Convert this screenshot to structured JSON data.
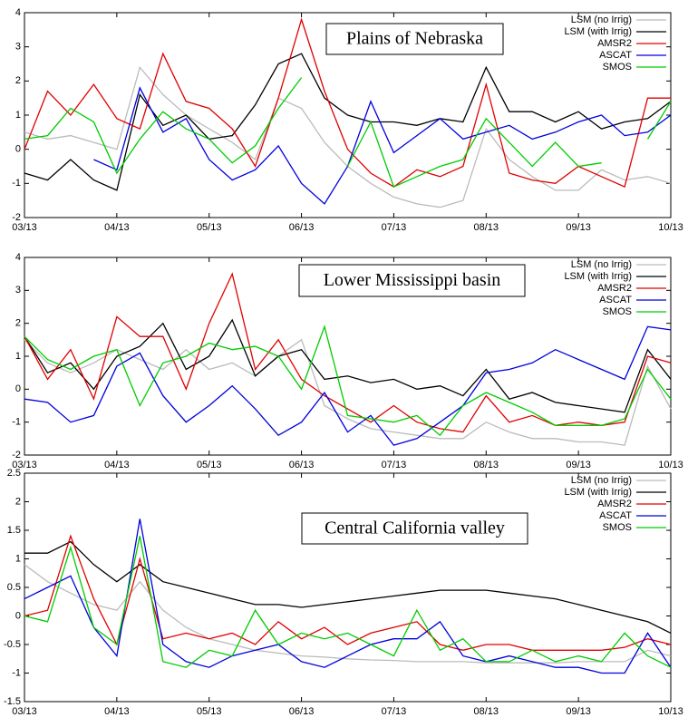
{
  "chart_data": [
    {
      "type": "line",
      "title": "Plains of Nebraska",
      "x": [
        0,
        0.25,
        0.5,
        0.75,
        1,
        1.25,
        1.5,
        1.75,
        2,
        2.25,
        2.5,
        2.75,
        3,
        3.25,
        3.5,
        3.75,
        4,
        4.25,
        4.5,
        4.75,
        5,
        5.25,
        5.5,
        5.75,
        6,
        6.25,
        6.5,
        6.75,
        7
      ],
      "xlim": [
        0,
        7
      ],
      "xticks": [
        {
          "value": 0,
          "label": "03/13"
        },
        {
          "value": 1,
          "label": "04/13"
        },
        {
          "value": 2,
          "label": "05/13"
        },
        {
          "value": 3,
          "label": "06/13"
        },
        {
          "value": 4,
          "label": "07/13"
        },
        {
          "value": 5,
          "label": "08/13"
        },
        {
          "value": 6,
          "label": "09/13"
        },
        {
          "value": 7,
          "label": "10/13"
        }
      ],
      "ylim": [
        -2,
        4
      ],
      "yticks": [
        -2,
        -1,
        0,
        1,
        2,
        3,
        4
      ],
      "legend": "top-right",
      "series": [
        {
          "name": "LSM (no Irrig)",
          "color": "#bbbbbb",
          "values": [
            0.5,
            0.3,
            0.4,
            0.2,
            0,
            2.4,
            1.6,
            1.0,
            0.6,
            0.2,
            -0.3,
            1.5,
            1.2,
            0.2,
            -0.5,
            -1.0,
            -1.4,
            -1.6,
            -1.7,
            -1.5,
            0.6,
            -0.3,
            -0.8,
            -1.2,
            -1.2,
            -0.6,
            -0.9,
            -0.8,
            -1.0
          ]
        },
        {
          "name": "LSM (with Irrig)",
          "color": "#000000",
          "values": [
            -0.7,
            -0.9,
            -0.3,
            -0.9,
            -1.2,
            1.6,
            0.7,
            1.0,
            0.3,
            0.4,
            1.3,
            2.5,
            2.8,
            1.5,
            1.0,
            0.8,
            0.8,
            0.7,
            0.9,
            0.8,
            2.4,
            1.1,
            1.1,
            0.8,
            1.1,
            0.6,
            0.8,
            0.9,
            1.4
          ]
        },
        {
          "name": "AMSR2",
          "color": "#e00000",
          "values": [
            0,
            1.7,
            1.0,
            1.9,
            0.9,
            0.6,
            2.8,
            1.4,
            1.2,
            0.6,
            -0.5,
            1.5,
            3.8,
            1.7,
            0,
            -0.7,
            -1.1,
            -0.6,
            -0.8,
            -0.5,
            1.9,
            -0.7,
            -0.9,
            -1.0,
            -0.5,
            -0.8,
            -1.1,
            1.5,
            1.5
          ]
        },
        {
          "name": "ASCAT",
          "color": "#0000dd",
          "values": [
            null,
            null,
            null,
            -0.3,
            -0.6,
            1.8,
            0.5,
            0.9,
            -0.3,
            -0.9,
            -0.6,
            0.1,
            -1.0,
            -1.6,
            -0.5,
            1.4,
            -0.1,
            0.4,
            0.9,
            0.3,
            0.5,
            0.7,
            0.3,
            0.5,
            0.8,
            1.0,
            0.4,
            0.5,
            1.0
          ]
        },
        {
          "name": "SMOS",
          "color": "#00cc00",
          "values": [
            0.3,
            0.4,
            1.2,
            0.8,
            -0.7,
            0.3,
            1.1,
            0.6,
            0.3,
            -0.4,
            0.1,
            1.2,
            2.1,
            null,
            -0.5,
            0.8,
            -1.1,
            -0.8,
            -0.5,
            -0.3,
            0.9,
            0.2,
            -0.5,
            0.2,
            -0.5,
            -0.4,
            null,
            0.3,
            1.4
          ]
        }
      ]
    },
    {
      "type": "line",
      "title": "Lower Mississippi basin",
      "x": [
        0,
        0.25,
        0.5,
        0.75,
        1,
        1.25,
        1.5,
        1.75,
        2,
        2.25,
        2.5,
        2.75,
        3,
        3.25,
        3.5,
        3.75,
        4,
        4.25,
        4.5,
        4.75,
        5,
        5.25,
        5.5,
        5.75,
        6,
        6.25,
        6.5,
        6.75,
        7
      ],
      "xlim": [
        0,
        7
      ],
      "xticks": [
        {
          "value": 0,
          "label": "03/13"
        },
        {
          "value": 1,
          "label": "04/13"
        },
        {
          "value": 2,
          "label": "05/13"
        },
        {
          "value": 3,
          "label": "06/13"
        },
        {
          "value": 4,
          "label": "07/13"
        },
        {
          "value": 5,
          "label": "08/13"
        },
        {
          "value": 6,
          "label": "09/13"
        },
        {
          "value": 7,
          "label": "10/13"
        }
      ],
      "ylim": [
        -2,
        4
      ],
      "yticks": [
        -2,
        -1,
        0,
        1,
        2,
        3,
        4
      ],
      "legend": "top-right",
      "series": [
        {
          "name": "LSM (no Irrig)",
          "color": "#bbbbbb",
          "values": [
            1.5,
            0.8,
            0.5,
            0.8,
            1.2,
            0.9,
            0.6,
            1.2,
            0.6,
            0.8,
            0.4,
            1.0,
            1.5,
            -0.5,
            -0.9,
            -1.2,
            -1.3,
            -1.4,
            -1.5,
            -1.5,
            -1.0,
            -1.3,
            -1.5,
            -1.5,
            -1.6,
            -1.6,
            -1.7,
            0.7,
            -0.6
          ]
        },
        {
          "name": "LSM (with Irrig)",
          "color": "#000000",
          "values": [
            1.6,
            0.5,
            0.8,
            0,
            1.0,
            1.3,
            2.0,
            0.6,
            1.0,
            2.1,
            0.4,
            1.0,
            1.2,
            0.3,
            0.4,
            0.2,
            0.3,
            0.0,
            0.1,
            -0.2,
            0.6,
            -0.3,
            -0.1,
            -0.4,
            -0.5,
            -0.6,
            -0.7,
            1.2,
            0.3
          ]
        },
        {
          "name": "AMSR2",
          "color": "#e00000",
          "values": [
            1.6,
            0.3,
            1.2,
            -0.3,
            2.2,
            1.6,
            1.6,
            0,
            2.0,
            3.5,
            0.6,
            1.5,
            0.3,
            -0.2,
            -0.6,
            -1.0,
            -0.5,
            -1.0,
            -1.2,
            -1.3,
            -0.2,
            -1.0,
            -0.8,
            -1.1,
            -1.0,
            -1.1,
            -1.0,
            1.0,
            0.8
          ]
        },
        {
          "name": "ASCAT",
          "color": "#0000dd",
          "values": [
            -0.3,
            -0.4,
            -1.0,
            -0.8,
            0.7,
            1.1,
            -0.2,
            -1.0,
            -0.5,
            0.1,
            -0.6,
            -1.4,
            -1.0,
            -0.1,
            -1.3,
            -0.8,
            -1.7,
            -1.5,
            -1.0,
            -0.5,
            0.5,
            0.6,
            0.8,
            1.2,
            0.9,
            0.6,
            0.3,
            1.9,
            1.8
          ]
        },
        {
          "name": "SMOS",
          "color": "#00cc00",
          "values": [
            1.6,
            0.9,
            0.6,
            1.0,
            1.2,
            -0.5,
            0.8,
            1.0,
            1.4,
            1.2,
            1.3,
            1.0,
            0,
            1.9,
            -0.8,
            -0.9,
            -1.0,
            -0.8,
            -1.4,
            -0.5,
            -0.1,
            -0.4,
            -0.7,
            -1.1,
            -1.1,
            -1.1,
            -0.9,
            0.6,
            -0.3
          ]
        }
      ]
    },
    {
      "type": "line",
      "title": "Central California valley",
      "x": [
        0,
        0.25,
        0.5,
        0.75,
        1,
        1.25,
        1.5,
        1.75,
        2,
        2.25,
        2.5,
        2.75,
        3,
        3.25,
        3.5,
        3.75,
        4,
        4.25,
        4.5,
        4.75,
        5,
        5.25,
        5.5,
        5.75,
        6,
        6.25,
        6.5,
        6.75,
        7
      ],
      "xlim": [
        0,
        7
      ],
      "xticks": [
        {
          "value": 0,
          "label": "03/13"
        },
        {
          "value": 1,
          "label": "04/13"
        },
        {
          "value": 2,
          "label": "05/13"
        },
        {
          "value": 3,
          "label": "06/13"
        },
        {
          "value": 4,
          "label": "07/13"
        },
        {
          "value": 5,
          "label": "08/13"
        },
        {
          "value": 6,
          "label": "09/13"
        },
        {
          "value": 7,
          "label": "10/13"
        }
      ],
      "ylim": [
        -1.5,
        2.5
      ],
      "yticks": [
        -1.5,
        -1,
        -0.5,
        0,
        0.5,
        1,
        1.5,
        2,
        2.5
      ],
      "legend": "top-right",
      "series": [
        {
          "name": "LSM (no Irrig)",
          "color": "#bbbbbb",
          "values": [
            0.9,
            0.6,
            0.4,
            0.2,
            0.1,
            0.6,
            0.1,
            -0.2,
            -0.4,
            -0.5,
            -0.6,
            -0.65,
            -0.7,
            -0.72,
            -0.75,
            -0.77,
            -0.78,
            -0.8,
            -0.8,
            -0.8,
            -0.82,
            -0.82,
            -0.82,
            -0.82,
            -0.8,
            -0.8,
            -0.8,
            -0.6,
            -0.7
          ]
        },
        {
          "name": "LSM (with Irrig)",
          "color": "#000000",
          "values": [
            1.1,
            1.1,
            1.3,
            0.9,
            0.6,
            0.9,
            0.6,
            0.5,
            0.4,
            0.3,
            0.2,
            0.2,
            0.15,
            0.2,
            0.25,
            0.3,
            0.35,
            0.4,
            0.45,
            0.45,
            0.45,
            0.4,
            0.35,
            0.3,
            0.2,
            0.1,
            0,
            -0.1,
            -0.3
          ]
        },
        {
          "name": "AMSR2",
          "color": "#e00000",
          "values": [
            0,
            0.1,
            1.4,
            0.3,
            -0.5,
            1.0,
            -0.4,
            -0.3,
            -0.4,
            -0.3,
            -0.5,
            -0.1,
            -0.4,
            -0.2,
            -0.5,
            -0.3,
            -0.2,
            -0.1,
            -0.5,
            -0.6,
            -0.5,
            -0.5,
            -0.6,
            -0.6,
            -0.6,
            -0.6,
            -0.55,
            -0.4,
            -0.5
          ]
        },
        {
          "name": "ASCAT",
          "color": "#0000dd",
          "values": [
            0.3,
            0.5,
            0.7,
            -0.2,
            -0.7,
            1.7,
            -0.5,
            -0.8,
            -0.9,
            -0.7,
            -0.6,
            -0.5,
            -0.8,
            -0.9,
            -0.7,
            -0.5,
            -0.4,
            -0.4,
            -0.1,
            -0.7,
            -0.8,
            -0.7,
            -0.8,
            -0.9,
            -0.9,
            -1.0,
            -1.0,
            -0.3,
            -0.9
          ]
        },
        {
          "name": "SMOS",
          "color": "#00cc00",
          "values": [
            0,
            -0.1,
            1.2,
            -0.2,
            -0.5,
            1.4,
            -0.8,
            -0.9,
            -0.6,
            -0.7,
            0.1,
            -0.5,
            -0.3,
            -0.4,
            -0.3,
            -0.5,
            -0.7,
            0.1,
            -0.6,
            -0.4,
            -0.8,
            -0.8,
            -0.6,
            -0.8,
            -0.7,
            -0.8,
            -0.3,
            -0.7,
            -0.9
          ]
        }
      ]
    }
  ]
}
